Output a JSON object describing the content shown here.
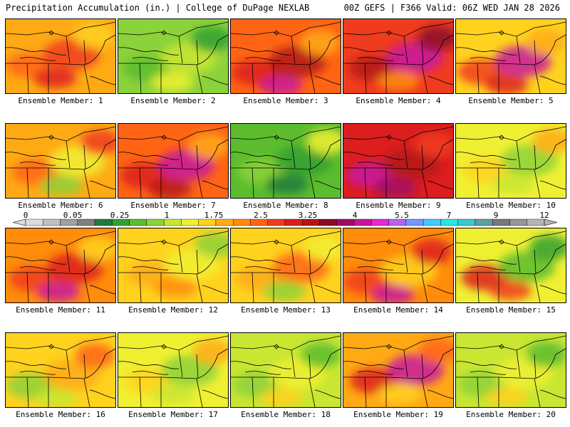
{
  "header": {
    "left": "Precipitation Accumulation (in.) | College of DuPage NEXLAB",
    "right": "00Z GEFS | F366 Valid: 06Z WED JAN 28 2026"
  },
  "legend": {
    "tick_labels": [
      "0",
      "0.05",
      "0.25",
      "1",
      "1.75",
      "2.5",
      "3.25",
      "4",
      "5.5",
      "7",
      "9",
      "12"
    ],
    "colors": [
      "#dcdcdc",
      "#c0c0c0",
      "#a0a0a0",
      "#808080",
      "#1e7b3c",
      "#32a032",
      "#5cbc2e",
      "#8cd23a",
      "#c8e632",
      "#f0f032",
      "#ffd21e",
      "#ffaa14",
      "#ff8c0a",
      "#ff6414",
      "#f03c1e",
      "#dc1e1e",
      "#b41414",
      "#8c0a28",
      "#a00a64",
      "#c814a0",
      "#e628d2",
      "#b464f0",
      "#7896ff",
      "#46c8ff",
      "#28e6e6",
      "#3cc8c8",
      "#5aa0a0",
      "#787878",
      "#969696",
      "#b4b4b4"
    ]
  },
  "panels": [
    {
      "label": "Ensemble Member: 1",
      "base": "#ffaa14",
      "blobs": [
        "#ff6414",
        "#f03c1e",
        "#ffd21e",
        "#dc1e1e"
      ]
    },
    {
      "label": "Ensemble Member: 2",
      "base": "#8cd23a",
      "blobs": [
        "#5cbc2e",
        "#c8e632",
        "#32a032",
        "#f0f032"
      ]
    },
    {
      "label": "Ensemble Member: 3",
      "base": "#ff6414",
      "blobs": [
        "#dc1e1e",
        "#b41414",
        "#ffaa14",
        "#c814a0"
      ]
    },
    {
      "label": "Ensemble Member: 4",
      "base": "#f03c1e",
      "blobs": [
        "#b41414",
        "#c814a0",
        "#8c0a28",
        "#ff8c0a"
      ]
    },
    {
      "label": "Ensemble Member: 5",
      "base": "#ffd21e",
      "blobs": [
        "#f03c1e",
        "#c814a0",
        "#ffaa14",
        "#dc1e1e"
      ]
    },
    {
      "label": "Ensemble Member: 6",
      "base": "#ffaa14",
      "blobs": [
        "#ff6414",
        "#f0f032",
        "#f03c1e",
        "#8cd23a"
      ]
    },
    {
      "label": "Ensemble Member: 7",
      "base": "#ff6414",
      "blobs": [
        "#dc1e1e",
        "#c814a0",
        "#ffaa14",
        "#b41414"
      ]
    },
    {
      "label": "Ensemble Member: 8",
      "base": "#5cbc2e",
      "blobs": [
        "#8cd23a",
        "#32a032",
        "#f0f032",
        "#1e7b3c"
      ]
    },
    {
      "label": "Ensemble Member: 9",
      "base": "#dc1e1e",
      "blobs": [
        "#c814a0",
        "#b41414",
        "#f03c1e",
        "#a00a64"
      ]
    },
    {
      "label": "Ensemble Member: 10",
      "base": "#f0f032",
      "blobs": [
        "#ffd21e",
        "#8cd23a",
        "#ffaa14",
        "#c8e632"
      ]
    },
    {
      "label": "Ensemble Member: 11",
      "base": "#ff8c0a",
      "blobs": [
        "#f03c1e",
        "#dc1e1e",
        "#ffd21e",
        "#c814a0"
      ]
    },
    {
      "label": "Ensemble Member: 12",
      "base": "#ffd21e",
      "blobs": [
        "#ffaa14",
        "#f0f032",
        "#8cd23a",
        "#ff8c0a"
      ]
    },
    {
      "label": "Ensemble Member: 13",
      "base": "#ffd21e",
      "blobs": [
        "#ffaa14",
        "#ff6414",
        "#f0f032",
        "#8cd23a"
      ]
    },
    {
      "label": "Ensemble Member: 14",
      "base": "#ff8c0a",
      "blobs": [
        "#f03c1e",
        "#ffd21e",
        "#dc1e1e",
        "#c814a0"
      ]
    },
    {
      "label": "Ensemble Member: 15",
      "base": "#f0f032",
      "blobs": [
        "#dc1e1e",
        "#5cbc2e",
        "#32a032",
        "#f03c1e"
      ]
    },
    {
      "label": "Ensemble Member: 16",
      "base": "#ffd21e",
      "blobs": [
        "#8cd23a",
        "#ffaa14",
        "#ff6414",
        "#c8e632"
      ]
    },
    {
      "label": "Ensemble Member: 17",
      "base": "#f0f032",
      "blobs": [
        "#ffd21e",
        "#8cd23a",
        "#ffaa14",
        "#c8e632"
      ]
    },
    {
      "label": "Ensemble Member: 18",
      "base": "#c8e632",
      "blobs": [
        "#8cd23a",
        "#f0f032",
        "#5cbc2e",
        "#ffd21e"
      ]
    },
    {
      "label": "Ensemble Member: 19",
      "base": "#ffaa14",
      "blobs": [
        "#dc1e1e",
        "#c814a0",
        "#ff6414",
        "#ffd21e"
      ]
    },
    {
      "label": "Ensemble Member: 20",
      "base": "#c8e632",
      "blobs": [
        "#8cd23a",
        "#f0f032",
        "#5cbc2e",
        "#ffd21e"
      ]
    }
  ]
}
